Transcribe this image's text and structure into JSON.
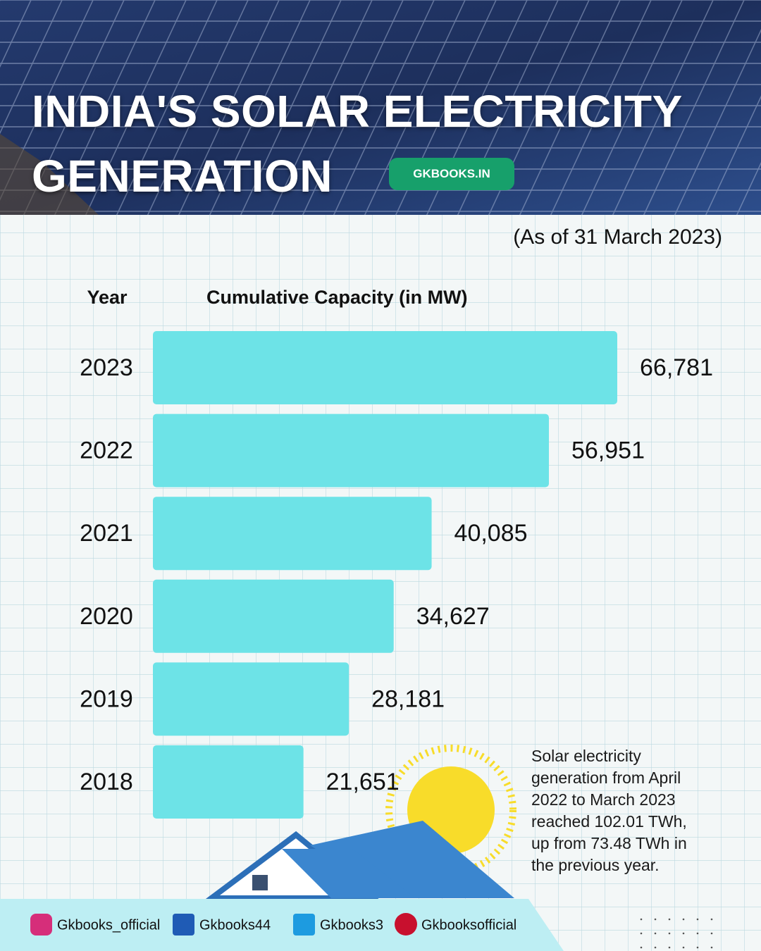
{
  "chart_data": {
    "type": "bar",
    "orientation": "horizontal",
    "title": "INDIA'S SOLAR ELECTRICITY GENERATION",
    "badge": "GKBOOKS.IN",
    "subtitle": "(As of 31 March 2023)",
    "category_label": "Year",
    "value_label": "Cumulative Capacity (in MW)",
    "categories": [
      "2023",
      "2022",
      "2021",
      "2020",
      "2019",
      "2018"
    ],
    "values": [
      66781,
      56951,
      40085,
      34627,
      28181,
      21651
    ],
    "value_labels": [
      "66,781",
      "56,951",
      "40,085",
      "34,627",
      "28,181",
      "21,651"
    ],
    "color": "#6de3e7",
    "annotation": "Solar electricity generation from April 2022 to March 2023 reached 102.01 TWh, up from 73.48 TWh in the previous year."
  },
  "footer": {
    "social": [
      "Gkbooks_official",
      "Gkbooks44",
      "Gkbooks3",
      "Gkbooksofficial"
    ]
  }
}
